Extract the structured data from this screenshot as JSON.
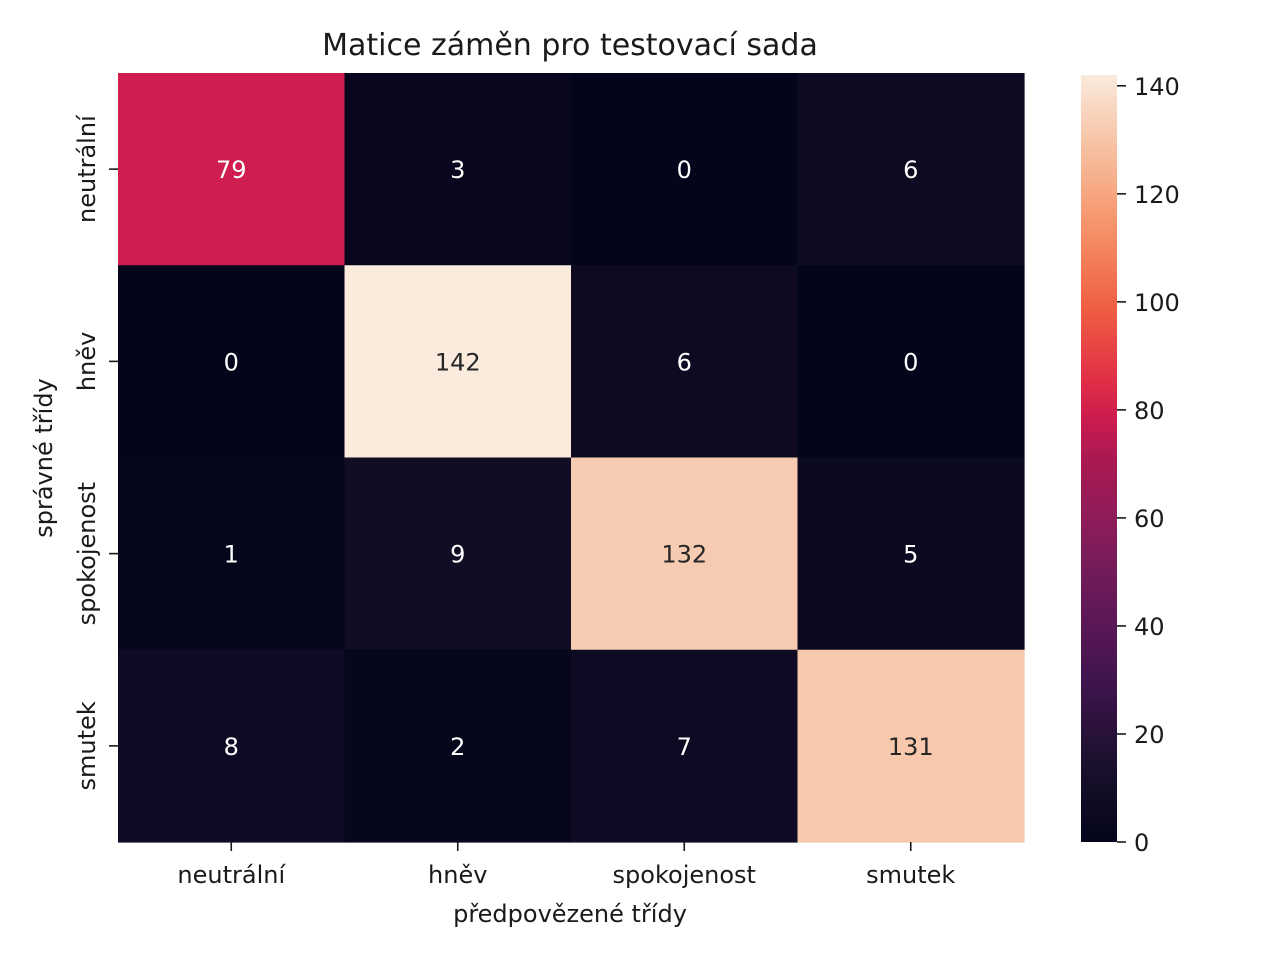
{
  "chart_data": {
    "type": "heatmap",
    "title": "Matice záměn pro testovací sada",
    "xlabel": "předpovězené třídy",
    "ylabel": "správné třídy",
    "x_categories": [
      "neutrální",
      "hněv",
      "spokojenost",
      "smutek"
    ],
    "y_categories": [
      "neutrální",
      "hněv",
      "spokojenost",
      "smutek"
    ],
    "values": [
      [
        79,
        3,
        0,
        6
      ],
      [
        0,
        142,
        6,
        0
      ],
      [
        1,
        9,
        132,
        5
      ],
      [
        8,
        2,
        7,
        131
      ]
    ],
    "colorbar": {
      "min": 0,
      "max": 142,
      "ticks": [
        0,
        20,
        40,
        60,
        80,
        100,
        120,
        140
      ],
      "colormap": "rocket"
    }
  }
}
